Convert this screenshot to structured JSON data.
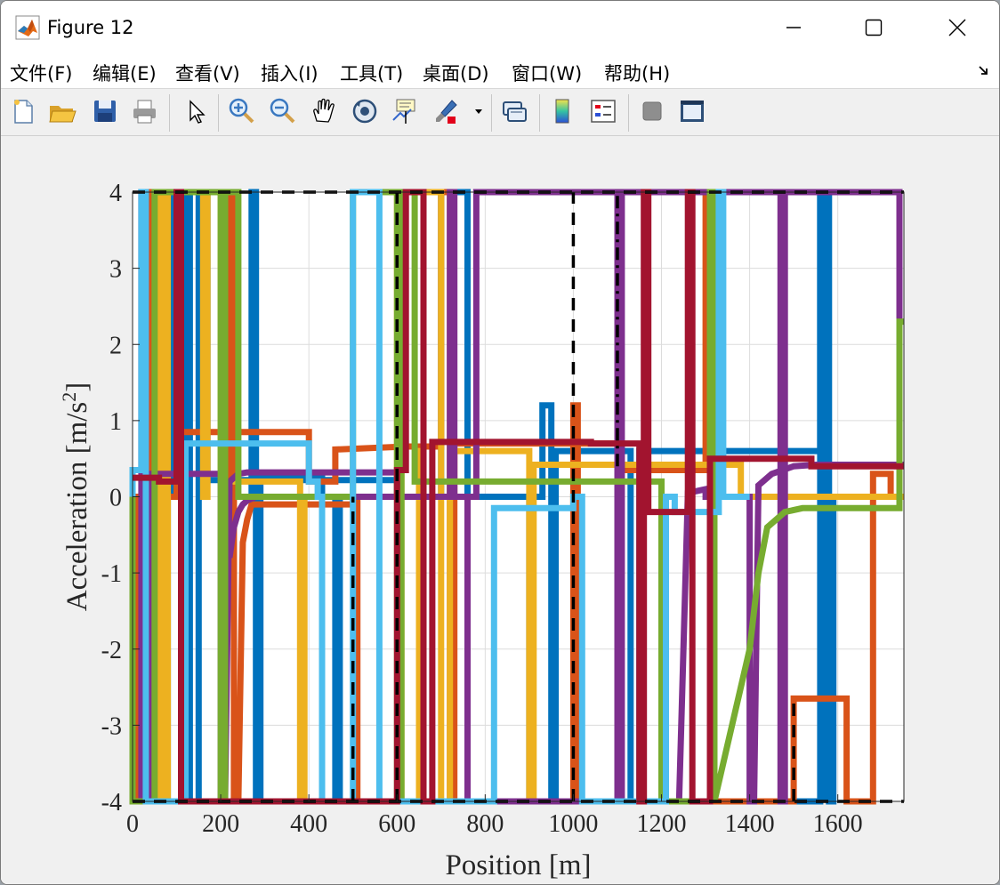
{
  "window": {
    "title": "Figure 12"
  },
  "menu": {
    "items": [
      "文件(F)",
      "编辑(E)",
      "查看(V)",
      "插入(I)",
      "工具(T)",
      "桌面(D)",
      "窗口(W)",
      "帮助(H)"
    ]
  },
  "toolbar": {
    "icons": [
      "new-figure-icon",
      "open-icon",
      "save-icon",
      "print-icon",
      "select-arrow-icon",
      "zoom-in-icon",
      "zoom-out-icon",
      "pan-hand-icon",
      "rotate-3d-icon",
      "data-cursor-icon",
      "brush-icon",
      "link-plot-icon",
      "colorbar-icon",
      "legend-icon",
      "hide-plot-tools-icon",
      "show-plot-tools-icon"
    ]
  },
  "colors": {
    "blue": "#0072BD",
    "orange": "#D95319",
    "yellow": "#EDB120",
    "purple": "#7E2F8E",
    "green": "#77AC30",
    "lightblue": "#4DBEEE",
    "red": "#A2142F",
    "black": "#000000"
  },
  "chart_data": {
    "type": "line",
    "title": "",
    "xlabel": "Position [m]",
    "ylabel": "Acceleration [m/s²]",
    "xlim": [
      0,
      1750
    ],
    "ylim": [
      -4,
      4
    ],
    "xticks": [
      0,
      200,
      400,
      600,
      800,
      1000,
      1200,
      1400,
      1600
    ],
    "yticks": [
      -4,
      -3,
      -2,
      -1,
      0,
      1,
      2,
      3,
      4
    ],
    "grid": true,
    "reference_lines": [
      {
        "style": "dashed",
        "color": "#000000",
        "x": [
          500,
          500
        ],
        "y": [
          -4,
          0
        ]
      },
      {
        "style": "dashed",
        "color": "#000000",
        "x": [
          600,
          600
        ],
        "y": [
          -4,
          4
        ]
      },
      {
        "style": "dashed",
        "color": "#000000",
        "x": [
          1000,
          1000
        ],
        "y": [
          -4,
          4
        ]
      },
      {
        "style": "dashdot",
        "color": "#000000",
        "x": [
          1100,
          1100
        ],
        "y": [
          0.4,
          4
        ]
      },
      {
        "style": "dashed",
        "color": "#000000",
        "x": [
          1500,
          1500
        ],
        "y": [
          -4,
          -2.6
        ]
      },
      {
        "style": "dashed",
        "color": "#000000",
        "x": [
          0,
          1750
        ],
        "y": [
          4,
          4
        ]
      },
      {
        "style": "dashed",
        "color": "#000000",
        "x": [
          0,
          1750
        ],
        "y": [
          -4,
          -4
        ]
      }
    ],
    "series": [
      {
        "color": "#0072BD",
        "x": [
          0,
          0,
          60,
          60,
          70,
          70,
          80,
          80,
          90,
          90,
          120,
          120,
          130,
          130,
          150,
          150,
          170,
          170,
          600,
          600,
          700,
          700,
          760,
          760,
          900,
          900,
          960,
          960,
          1130,
          1130,
          1150,
          1150,
          1380,
          1380,
          1560,
          1560,
          1580,
          1580,
          1590,
          1590,
          1740,
          1740,
          1750
        ],
        "y": [
          0,
          -4,
          -4,
          4,
          4,
          -4,
          -4,
          4,
          4,
          0,
          0,
          4,
          4,
          -4,
          -4,
          4,
          4,
          0.22,
          0.22,
          0,
          0,
          4,
          4,
          0,
          0,
          -4,
          -4,
          0.6,
          0.6,
          -4,
          -4,
          0.6,
          0.6,
          0.6,
          0.6,
          4,
          4,
          -4,
          -4,
          0,
          0,
          0,
          0
        ]
      },
      {
        "color": "#0072BD",
        "x": [
          270,
          270,
          280,
          280,
          290,
          290,
          430,
          430,
          460,
          460,
          470,
          470,
          930,
          930,
          950,
          950,
          1560,
          1560,
          1570,
          1570
        ],
        "y": [
          0,
          4,
          4,
          -4,
          -4,
          0.24,
          0.24,
          0,
          0,
          -4,
          -4,
          0,
          0,
          1.2,
          1.2,
          -4,
          -4,
          4,
          4,
          -4
        ]
      },
      {
        "color": "#D95319",
        "x": [
          0,
          0,
          10,
          10,
          30,
          30,
          40,
          40,
          100,
          100,
          110,
          110,
          400,
          400,
          460,
          460,
          620,
          630,
          660,
          700,
          700,
          720,
          720,
          730,
          730,
          1100,
          1100,
          1300,
          1300,
          1310,
          1310,
          1500,
          1500,
          1620,
          1620,
          1680,
          1680,
          1720,
          1720,
          1750
        ],
        "y": [
          0,
          -4,
          -4,
          0,
          0,
          4,
          4,
          0,
          0,
          0.85,
          0.85,
          0.85,
          0.85,
          0.2,
          0.2,
          0.62,
          0.66,
          0.66,
          0.66,
          0.66,
          4,
          4,
          -4,
          -4,
          0.7,
          0.7,
          0.35,
          0.35,
          4,
          4,
          -4,
          -4,
          -2.65,
          -2.65,
          -4,
          -4,
          0.3,
          0.3,
          0,
          0
        ]
      },
      {
        "color": "#D95319",
        "x": [
          220,
          220,
          230,
          230,
          240,
          250,
          260,
          270,
          500,
          500,
          510,
          510,
          1000,
          1000,
          1010,
          1010,
          1200,
          1200,
          1210,
          1210
        ],
        "y": [
          0,
          4,
          4,
          -4,
          -4,
          -0.6,
          -0.3,
          -0.1,
          -0.1,
          0,
          0,
          -4,
          -4,
          1.2,
          1.2,
          -4,
          -4,
          0,
          0,
          -4
        ]
      },
      {
        "color": "#EDB120",
        "x": [
          0,
          0,
          60,
          60,
          70,
          70,
          80,
          80,
          160,
          160,
          170,
          170,
          200,
          200,
          380,
          380,
          390,
          390,
          600,
          600,
          610,
          610,
          650,
          650,
          660,
          660,
          700,
          700,
          720,
          720,
          900,
          900,
          910,
          910,
          1100,
          1100,
          1110,
          1110,
          1380,
          1380,
          1400,
          1400,
          1750
        ],
        "y": [
          0,
          -4,
          -4,
          4,
          4,
          -4,
          -4,
          4,
          4,
          0,
          0,
          4,
          4,
          0.2,
          0.2,
          -4,
          -4,
          0,
          0,
          4,
          4,
          -4,
          -4,
          0.6,
          0.6,
          4,
          4,
          -4,
          -4,
          0.6,
          0.6,
          -4,
          -4,
          0.42,
          0.42,
          0.42,
          0.42,
          0.42,
          0.42,
          0,
          0,
          0,
          0
        ]
      },
      {
        "color": "#7E2F8E",
        "x": [
          0,
          0,
          20,
          20,
          30,
          30,
          40,
          40,
          200,
          200,
          210,
          220,
          240,
          260,
          600,
          600,
          610,
          610,
          760,
          760,
          1100,
          1100,
          1110,
          1110,
          1240,
          1260,
          1300,
          1300,
          1320,
          1330,
          1400,
          1400,
          1410,
          1420,
          1450,
          1500,
          1550,
          1600,
          1750
        ],
        "y": [
          0,
          -4,
          -4,
          4,
          4,
          -4,
          -4,
          0.3,
          0.3,
          -4,
          -4,
          0.2,
          0.3,
          0.32,
          0.32,
          0,
          0,
          0,
          0,
          -4,
          -4,
          4,
          4,
          -4,
          -4,
          0.05,
          0.1,
          0,
          0,
          0,
          0,
          -4,
          -4,
          0.15,
          0.3,
          0.4,
          0.42,
          0.42,
          0.42
        ]
      },
      {
        "color": "#7E2F8E",
        "x": [
          220,
          230,
          240,
          250,
          260,
          280,
          720,
          720,
          730,
          730,
          780,
          780,
          1470,
          1470,
          1480,
          1480,
          1740,
          1740
        ],
        "y": [
          -0.8,
          -0.4,
          -0.2,
          -0.1,
          -0.05,
          0,
          0,
          4,
          4,
          0,
          0,
          4,
          4,
          -4,
          -4,
          4,
          4,
          0
        ]
      },
      {
        "color": "#77AC30",
        "x": [
          0,
          0,
          50,
          50,
          200,
          200,
          210,
          210,
          240,
          240,
          500,
          500,
          590,
          590,
          600,
          600,
          610,
          610,
          640,
          640,
          800,
          800,
          1200,
          1200,
          1310,
          1310,
          1320,
          1320,
          1400,
          1420,
          1440,
          1480,
          1520,
          1600,
          1680,
          1740,
          1740,
          1750
        ],
        "y": [
          0,
          -4,
          -4,
          4,
          4,
          -4,
          -4,
          4,
          4,
          0,
          0,
          4,
          4,
          4,
          4,
          -4,
          -4,
          4,
          4,
          0.2,
          0.2,
          0.2,
          0.2,
          -4,
          -4,
          4,
          4,
          -4,
          -2.0,
          -1.0,
          -0.4,
          -0.2,
          -0.15,
          -0.15,
          -0.15,
          -0.15,
          2.3,
          2.3
        ]
      },
      {
        "color": "#4DBEEE",
        "x": [
          0,
          0,
          20,
          20,
          30,
          30,
          120,
          120,
          140,
          140,
          160,
          400,
          400,
          420,
          420,
          430,
          430,
          500,
          500,
          560,
          560,
          820,
          820,
          1000,
          1000,
          1020,
          1020,
          1210,
          1210,
          1230,
          1230,
          1330,
          1330,
          1340,
          1340,
          1400
        ],
        "y": [
          0,
          0.35,
          0.35,
          4,
          4,
          -4,
          -4,
          0.7,
          0.7,
          0.7,
          0.7,
          0.7,
          0.2,
          0.2,
          0,
          0,
          -4,
          -4,
          4,
          4,
          -4,
          -4,
          -0.15,
          -0.15,
          0,
          0,
          -4,
          -4,
          0,
          0,
          -0.2,
          -0.2,
          4,
          4,
          0,
          0
        ]
      },
      {
        "color": "#A2142F",
        "x": [
          0,
          0,
          60,
          60,
          100,
          100,
          110,
          110,
          600,
          600,
          620,
          620,
          660,
          660,
          680,
          680,
          1040,
          1040,
          1150,
          1150,
          1160,
          1160,
          1170,
          1170,
          1260,
          1260,
          1270,
          1270,
          1310,
          1310,
          1420,
          1420,
          1540,
          1540,
          1620,
          1620,
          1750
        ],
        "y": [
          0.25,
          0.25,
          0.25,
          0.2,
          0.2,
          4,
          4,
          -4,
          -4,
          0.35,
          0.35,
          4,
          4,
          -4,
          -4,
          0.72,
          0.72,
          0.7,
          0.7,
          -4,
          -4,
          4,
          4,
          -0.2,
          -0.2,
          4,
          4,
          -4,
          -4,
          0.5,
          0.5,
          0.5,
          0.5,
          0.4,
          0.4,
          0.4,
          0.4
        ]
      }
    ]
  }
}
